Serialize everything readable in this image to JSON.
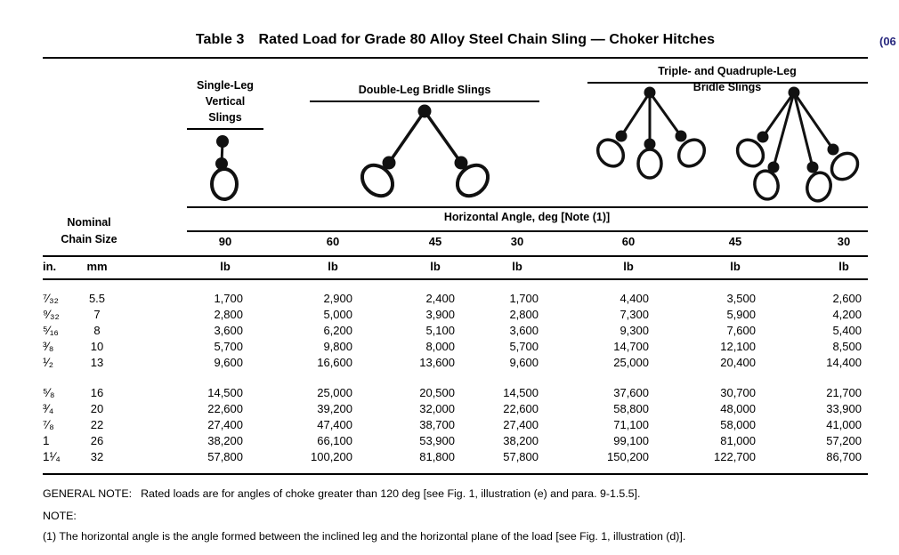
{
  "page": {
    "table_label": "Table 3",
    "title": "Rated Load for Grade 80 Alloy Steel Chain Sling — Choker Hitches",
    "edition_tag": "(06",
    "edition_color": "#28287E"
  },
  "diagrams": {
    "single_label": "Single-Leg\nVertical\nSlings",
    "double_label": "Double-Leg Bridle Slings",
    "triple_quad_label": "Triple- and Quadruple-Leg Bridle Slings"
  },
  "table": {
    "span_header": "Horizontal Angle, deg [Note (1)]",
    "row_header_line1": "Nominal",
    "row_header_line2": "Chain Size",
    "angle_headers": [
      "90",
      "60",
      "45",
      "30",
      "60",
      "45",
      "30"
    ],
    "units": {
      "in": "in.",
      "mm": "mm",
      "lb": [
        "lb",
        "lb",
        "lb",
        "lb",
        "lb",
        "lb",
        "lb"
      ]
    },
    "groups": [
      {
        "rows": [
          {
            "size_in": "⁷⁄₃₂",
            "size_mm": "5.5",
            "loads": [
              "1,700",
              "2,900",
              "2,400",
              "1,700",
              "4,400",
              "3,500",
              "2,600"
            ]
          },
          {
            "size_in": "⁹⁄₃₂",
            "size_mm": "7",
            "loads": [
              "2,800",
              "5,000",
              "3,900",
              "2,800",
              "7,300",
              "5,900",
              "4,200"
            ]
          },
          {
            "size_in": "⁵⁄₁₆",
            "size_mm": "8",
            "loads": [
              "3,600",
              "6,200",
              "5,100",
              "3,600",
              "9,300",
              "7,600",
              "5,400"
            ]
          },
          {
            "size_in": "³⁄₈",
            "size_mm": "10",
            "loads": [
              "5,700",
              "9,800",
              "8,000",
              "5,700",
              "14,700",
              "12,100",
              "8,500"
            ]
          },
          {
            "size_in": "¹⁄₂",
            "size_mm": "13",
            "loads": [
              "9,600",
              "16,600",
              "13,600",
              "9,600",
              "25,000",
              "20,400",
              "14,400"
            ]
          }
        ]
      },
      {
        "rows": [
          {
            "size_in": "⁵⁄₈",
            "size_mm": "16",
            "loads": [
              "14,500",
              "25,000",
              "20,500",
              "14,500",
              "37,600",
              "30,700",
              "21,700"
            ]
          },
          {
            "size_in": "³⁄₄",
            "size_mm": "20",
            "loads": [
              "22,600",
              "39,200",
              "32,000",
              "22,600",
              "58,800",
              "48,000",
              "33,900"
            ]
          },
          {
            "size_in": "⁷⁄₈",
            "size_mm": "22",
            "loads": [
              "27,400",
              "47,400",
              "38,700",
              "27,400",
              "71,100",
              "58,000",
              "41,000"
            ]
          },
          {
            "size_in": "1",
            "size_mm": "26",
            "loads": [
              "38,200",
              "66,100",
              "53,900",
              "38,200",
              "99,100",
              "81,000",
              "57,200"
            ]
          },
          {
            "size_in": "1¹⁄₄",
            "size_mm": "32",
            "loads": [
              "57,800",
              "100,200",
              "81,800",
              "57,800",
              "150,200",
              "122,700",
              "86,700"
            ]
          }
        ]
      }
    ]
  },
  "notes": {
    "general_label": "GENERAL NOTE:",
    "general_text": "Rated loads are for angles of choke greater than 120 deg [see Fig. 1, illustration (e) and para. 9-1.5.5].",
    "note_label": "NOTE:",
    "note_1": "(1) The horizontal angle is the angle formed between the inclined leg and the horizontal plane of the load [see Fig. 1, illustration (d)]."
  }
}
